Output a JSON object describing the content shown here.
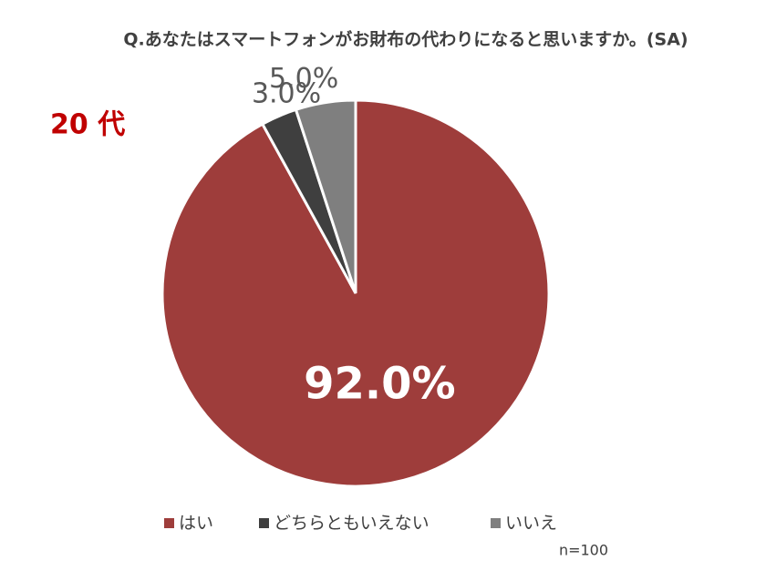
{
  "chart_data": {
    "type": "pie",
    "title": "Q.あなたはスマートフォンがお財布の代わりになると思いますか。(SA)",
    "subtitle": "20 代",
    "note": "n=100",
    "categories": [
      "はい",
      "どちらともいえない",
      "いいえ"
    ],
    "values": [
      92.0,
      3.0,
      5.0
    ],
    "value_labels": [
      "92.0%",
      "3.0%",
      "5.0%"
    ],
    "colors": [
      "#9e3d3b",
      "#3f3f3f",
      "#7f7f7f"
    ]
  }
}
